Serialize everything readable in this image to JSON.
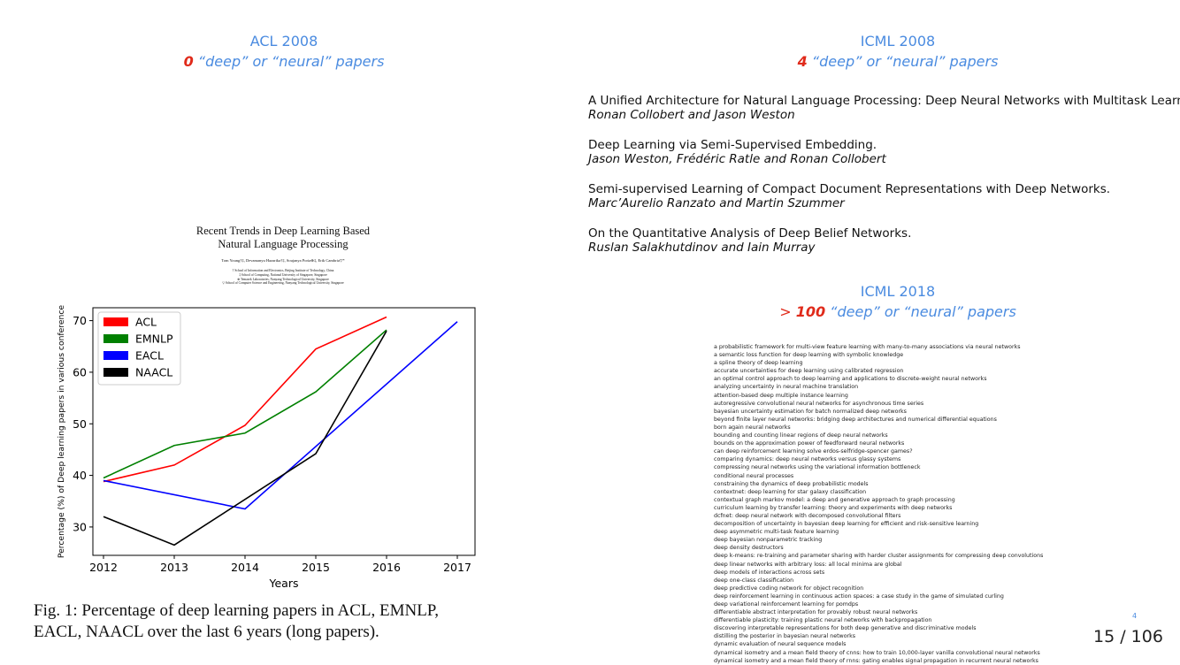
{
  "acl2008": {
    "title": "ACL 2008",
    "count": "0",
    "label": " “deep” or “neural” papers"
  },
  "icml2008": {
    "title": "ICML 2008",
    "count": "4",
    "label": " “deep” or “neural” papers"
  },
  "icml2018": {
    "title": "ICML 2018",
    "prefix": "> ",
    "count": "100",
    "label": " “deep” or “neural” papers"
  },
  "papers": [
    {
      "title": "A Unified Architecture for Natural Language Processing: Deep Neural Networks with Multitask Learning.",
      "authors": "Ronan Collobert and Jason Weston"
    },
    {
      "title": "Deep Learning via Semi-Supervised Embedding.",
      "authors": "Jason Weston, Frédéric Ratle and Ronan Collobert"
    },
    {
      "title": "Semi-supervised Learning of Compact Document Representations with Deep Networks.",
      "authors": "Marc’Aurelio Ranzato and Martin Szummer"
    },
    {
      "title": "On the Quantitative Analysis of Deep Belief Networks.",
      "authors": "Ruslan Salakhutdinov and Iain Murray"
    }
  ],
  "paper_header": {
    "title_line1": "Recent Trends in Deep Learning Based",
    "title_line2": "Natural Language Processing",
    "authors": "Tom Young†‡, Devamanyu Hazarika†‡, Soujanya Poria⊕‡, Erik Cambria▽*",
    "affil1": "† School of Information and Electronics, Beijing Institute of Technology, China",
    "affil2": "‡ School of Computing, National University of Singapore, Singapore",
    "affil3": "⊕ Temasek Laboratories, Nanyang Technological University, Singapore",
    "affil4": "▽ School of Computer Science and Engineering, Nanyang Technological University, Singapore"
  },
  "caption_line1": "Fig. 1: Percentage of deep learning papers in ACL, EMNLP,",
  "caption_line2": "EACL, NAACL over the last 6 years (long papers).",
  "footnote_mark": "4",
  "page_number": "15 / 106",
  "icml2018_titles": [
    "a probabilistic framework for multi-view feature learning with many-to-many associations via neural networks",
    "a semantic loss function for deep learning with symbolic knowledge",
    "a spline theory of deep learning",
    "accurate uncertainties for deep learning using calibrated regression",
    "an optimal control approach to deep learning and applications to discrete-weight neural networks",
    "analyzing uncertainty in neural machine translation",
    "attention-based deep multiple instance learning",
    "autoregressive convolutional neural networks for asynchronous time series",
    "bayesian uncertainty estimation for batch normalized deep networks",
    "beyond finite layer neural networks: bridging deep architectures and numerical differential equations",
    "born again neural networks",
    "bounding and counting linear regions of deep neural networks",
    "bounds on the approximation power of feedforward neural networks",
    "can deep reinforcement learning solve erdos-selfridge-spencer games?",
    "comparing dynamics: deep neural networks versus glassy systems",
    "compressing neural networks using the variational information bottleneck",
    "conditional neural processes",
    "constraining the dynamics of deep probabilistic models",
    "contextnet: deep learning for star galaxy classification",
    "contextual graph markov model: a deep and generative approach to graph processing",
    "curriculum learning by transfer learning: theory and experiments with deep networks",
    "dcfnet: deep neural network with decomposed convolutional filters",
    "decomposition of uncertainty in bayesian deep learning for efficient and risk-sensitive learning",
    "deep asymmetric multi-task feature learning",
    "deep bayesian nonparametric tracking",
    "deep density destructors",
    "deep k-means: re-training and parameter sharing with harder cluster assignments for compressing deep convolutions",
    "deep linear networks with arbitrary loss: all local minima are global",
    "deep models of interactions across sets",
    "deep one-class classification",
    "deep predictive coding network for object recognition",
    "deep reinforcement learning in continuous action spaces: a case study in the game of simulated curling",
    "deep variational reinforcement learning for pomdps",
    "differentiable abstract interpretation for provably robust neural networks",
    "differentiable plasticity: training plastic neural networks with backpropagation",
    "discovering interpretable representations for both deep generative and discriminative models",
    "distilling the posterior in bayesian neural networks",
    "dynamic evaluation of neural sequence models",
    "dynamical isometry and a mean field theory of cnns: how to train 10,000-layer vanilla convolutional neural networks",
    "dynamical isometry and a mean field theory of rnns: gating enables signal propagation in recurrent neural networks"
  ],
  "chart_data": {
    "type": "line",
    "x": [
      2012,
      2013,
      2014,
      2015,
      2016,
      2017
    ],
    "xlabel": "Years",
    "ylabel": "Percentage (%) of Deep learning papers in various conference",
    "xlim": [
      2011.85,
      2017.25
    ],
    "ylim": [
      24.5,
      72.5
    ],
    "xticks": [
      2012,
      2013,
      2014,
      2015,
      2016,
      2017
    ],
    "yticks": [
      30,
      40,
      50,
      60,
      70
    ],
    "legend_position": "top-left",
    "series": [
      {
        "name": "ACL",
        "color": "#ff0000",
        "points": [
          [
            2012,
            38.8
          ],
          [
            2013,
            42
          ],
          [
            2014,
            49.7
          ],
          [
            2015,
            64.5
          ],
          [
            2016,
            70.7
          ]
        ]
      },
      {
        "name": "EMNLP",
        "color": "#008000",
        "points": [
          [
            2012,
            39.5
          ],
          [
            2013,
            45.8
          ],
          [
            2014,
            48.2
          ],
          [
            2015,
            56.2
          ],
          [
            2016,
            68.2
          ]
        ]
      },
      {
        "name": "EACL",
        "color": "#0000ff",
        "points": [
          [
            2012,
            39
          ],
          [
            2014,
            33.5
          ],
          [
            2017,
            69.8
          ]
        ]
      },
      {
        "name": "NAACL",
        "color": "#000000",
        "points": [
          [
            2012,
            32
          ],
          [
            2013,
            26.5
          ],
          [
            2015,
            44.2
          ],
          [
            2016,
            68
          ]
        ]
      }
    ]
  }
}
